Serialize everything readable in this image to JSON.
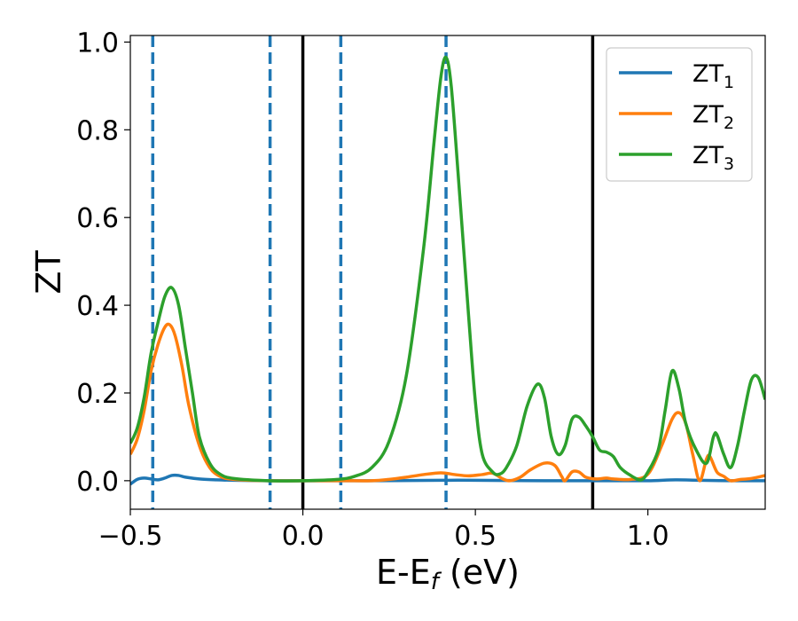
{
  "chart_data": {
    "type": "line",
    "xlabel": {
      "main": "E-E",
      "sub": "f",
      "tail": " (eV)"
    },
    "ylabel": "ZT",
    "xlim": [
      -0.5,
      1.34
    ],
    "ylim": [
      -0.065,
      1.015
    ],
    "xticks": [
      {
        "value": -0.5,
        "label": "−0.5"
      },
      {
        "value": 0.0,
        "label": "0.0"
      },
      {
        "value": 0.5,
        "label": "0.5"
      },
      {
        "value": 1.0,
        "label": "1.0"
      }
    ],
    "yticks": [
      {
        "value": 0.0,
        "label": "0.0"
      },
      {
        "value": 0.2,
        "label": "0.2"
      },
      {
        "value": 0.4,
        "label": "0.4"
      },
      {
        "value": 0.6,
        "label": "0.6"
      },
      {
        "value": 0.8,
        "label": "0.8"
      },
      {
        "value": 1.0,
        "label": "1.0"
      }
    ],
    "grid": false,
    "legend_position": "top-right",
    "vlines": [
      {
        "x": -0.435,
        "style": "dashed",
        "color": "#1f77b4"
      },
      {
        "x": -0.095,
        "style": "dashed",
        "color": "#1f77b4"
      },
      {
        "x": 0.0,
        "style": "solid",
        "color": "#000000"
      },
      {
        "x": 0.11,
        "style": "dashed",
        "color": "#1f77b4"
      },
      {
        "x": 0.415,
        "style": "dashed",
        "color": "#1f77b4"
      },
      {
        "x": 0.84,
        "style": "solid",
        "color": "#000000"
      }
    ],
    "series": [
      {
        "name": {
          "main": "ZT",
          "sub": "1"
        },
        "color": "#1f77b4",
        "points": [
          [
            -0.5,
            -0.008
          ],
          [
            -0.48,
            0.003
          ],
          [
            -0.46,
            0.006
          ],
          [
            -0.44,
            0.004
          ],
          [
            -0.42,
            0.002
          ],
          [
            -0.4,
            0.006
          ],
          [
            -0.38,
            0.012
          ],
          [
            -0.36,
            0.012
          ],
          [
            -0.34,
            0.008
          ],
          [
            -0.3,
            0.004
          ],
          [
            -0.25,
            0.002
          ],
          [
            -0.2,
            0.001
          ],
          [
            -0.1,
            0.0
          ],
          [
            0.0,
            0.0
          ],
          [
            0.2,
            0.0
          ],
          [
            0.4,
            0.001
          ],
          [
            0.5,
            0.001
          ],
          [
            0.7,
            0.0
          ],
          [
            0.9,
            0.0
          ],
          [
            1.0,
            0.0
          ],
          [
            1.08,
            0.002
          ],
          [
            1.15,
            0.001
          ],
          [
            1.25,
            0.0
          ],
          [
            1.34,
            0.0
          ]
        ]
      },
      {
        "name": {
          "main": "ZT",
          "sub": "2"
        },
        "color": "#ff7f0e",
        "points": [
          [
            -0.5,
            0.06
          ],
          [
            -0.48,
            0.095
          ],
          [
            -0.46,
            0.16
          ],
          [
            -0.44,
            0.25
          ],
          [
            -0.42,
            0.31
          ],
          [
            -0.4,
            0.35
          ],
          [
            -0.385,
            0.355
          ],
          [
            -0.37,
            0.33
          ],
          [
            -0.35,
            0.26
          ],
          [
            -0.33,
            0.17
          ],
          [
            -0.3,
            0.08
          ],
          [
            -0.27,
            0.03
          ],
          [
            -0.24,
            0.01
          ],
          [
            -0.2,
            0.003
          ],
          [
            -0.1,
            0.0
          ],
          [
            0.1,
            0.0
          ],
          [
            0.2,
            0.0
          ],
          [
            0.25,
            0.003
          ],
          [
            0.3,
            0.008
          ],
          [
            0.35,
            0.014
          ],
          [
            0.4,
            0.018
          ],
          [
            0.44,
            0.014
          ],
          [
            0.48,
            0.011
          ],
          [
            0.52,
            0.014
          ],
          [
            0.55,
            0.017
          ],
          [
            0.58,
            0.004
          ],
          [
            0.6,
            0.0
          ],
          [
            0.63,
            0.008
          ],
          [
            0.66,
            0.025
          ],
          [
            0.7,
            0.04
          ],
          [
            0.73,
            0.035
          ],
          [
            0.75,
            0.01
          ],
          [
            0.76,
            0.0
          ],
          [
            0.78,
            0.02
          ],
          [
            0.8,
            0.02
          ],
          [
            0.82,
            0.008
          ],
          [
            0.85,
            0.004
          ],
          [
            0.88,
            0.006
          ],
          [
            0.9,
            0.004
          ],
          [
            0.95,
            0.003
          ],
          [
            1.0,
            0.015
          ],
          [
            1.04,
            0.08
          ],
          [
            1.07,
            0.14
          ],
          [
            1.09,
            0.155
          ],
          [
            1.11,
            0.13
          ],
          [
            1.13,
            0.06
          ],
          [
            1.15,
            0.0
          ],
          [
            1.17,
            0.05
          ],
          [
            1.18,
            0.055
          ],
          [
            1.2,
            0.02
          ],
          [
            1.22,
            0.01
          ],
          [
            1.24,
            0.0
          ],
          [
            1.27,
            0.003
          ],
          [
            1.3,
            0.005
          ],
          [
            1.34,
            0.012
          ]
        ]
      },
      {
        "name": {
          "main": "ZT",
          "sub": "3"
        },
        "color": "#2ca02c",
        "points": [
          [
            -0.5,
            0.085
          ],
          [
            -0.48,
            0.12
          ],
          [
            -0.46,
            0.19
          ],
          [
            -0.44,
            0.29
          ],
          [
            -0.42,
            0.36
          ],
          [
            -0.4,
            0.42
          ],
          [
            -0.38,
            0.44
          ],
          [
            -0.36,
            0.4
          ],
          [
            -0.34,
            0.3
          ],
          [
            -0.32,
            0.2
          ],
          [
            -0.3,
            0.1
          ],
          [
            -0.27,
            0.04
          ],
          [
            -0.24,
            0.015
          ],
          [
            -0.2,
            0.005
          ],
          [
            -0.1,
            0.0
          ],
          [
            0.0,
            0.0
          ],
          [
            0.1,
            0.003
          ],
          [
            0.15,
            0.01
          ],
          [
            0.2,
            0.03
          ],
          [
            0.25,
            0.09
          ],
          [
            0.3,
            0.24
          ],
          [
            0.35,
            0.53
          ],
          [
            0.38,
            0.77
          ],
          [
            0.4,
            0.92
          ],
          [
            0.415,
            0.965
          ],
          [
            0.43,
            0.9
          ],
          [
            0.45,
            0.7
          ],
          [
            0.48,
            0.38
          ],
          [
            0.5,
            0.18
          ],
          [
            0.52,
            0.06
          ],
          [
            0.55,
            0.02
          ],
          [
            0.57,
            0.015
          ],
          [
            0.59,
            0.03
          ],
          [
            0.62,
            0.08
          ],
          [
            0.65,
            0.17
          ],
          [
            0.68,
            0.22
          ],
          [
            0.7,
            0.19
          ],
          [
            0.72,
            0.1
          ],
          [
            0.74,
            0.06
          ],
          [
            0.76,
            0.08
          ],
          [
            0.78,
            0.14
          ],
          [
            0.8,
            0.145
          ],
          [
            0.82,
            0.125
          ],
          [
            0.84,
            0.1
          ],
          [
            0.86,
            0.07
          ],
          [
            0.88,
            0.065
          ],
          [
            0.9,
            0.055
          ],
          [
            0.92,
            0.03
          ],
          [
            0.95,
            0.012
          ],
          [
            0.98,
            0.002
          ],
          [
            1.0,
            0.02
          ],
          [
            1.03,
            0.07
          ],
          [
            1.05,
            0.16
          ],
          [
            1.07,
            0.25
          ],
          [
            1.09,
            0.21
          ],
          [
            1.11,
            0.13
          ],
          [
            1.14,
            0.07
          ],
          [
            1.17,
            0.04
          ],
          [
            1.19,
            0.1
          ],
          [
            1.2,
            0.105
          ],
          [
            1.22,
            0.06
          ],
          [
            1.24,
            0.03
          ],
          [
            1.26,
            0.08
          ],
          [
            1.28,
            0.16
          ],
          [
            1.3,
            0.23
          ],
          [
            1.32,
            0.235
          ],
          [
            1.34,
            0.185
          ]
        ]
      }
    ]
  }
}
